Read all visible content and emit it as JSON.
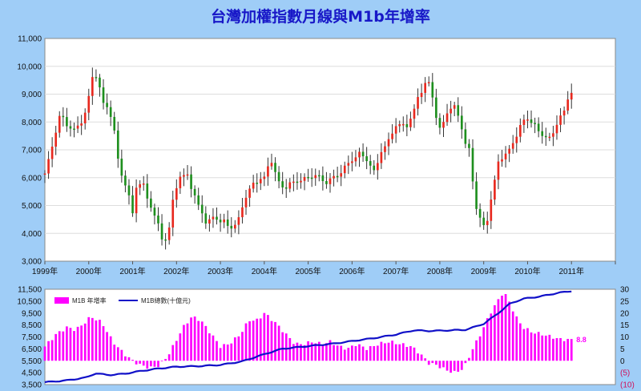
{
  "chart_data": [
    {
      "type": "candlestick",
      "title": "台灣加權指數月線與M1b年增率",
      "ylim": [
        3000,
        11000
      ],
      "y_ticks": [
        "3,000",
        "4,000",
        "5,000",
        "6,000",
        "7,000",
        "8,000",
        "9,000",
        "10,000",
        "11,000"
      ],
      "x_ticks": [
        "1999年",
        "2000年",
        "2001年",
        "2002年",
        "2003年",
        "2004年",
        "2005年",
        "2006年",
        "2007年",
        "2008年",
        "2009年",
        "2010年",
        "2011年"
      ],
      "x_range": [
        1999.0,
        2012.0
      ],
      "grid": true,
      "colors": {
        "up": "#e8281e",
        "down": "#1e8f1e"
      },
      "monthly_close_anchors": [
        [
          1999.0,
          6150
        ],
        [
          1999.1,
          6700
        ],
        [
          1999.2,
          7350
        ],
        [
          1999.35,
          8300
        ],
        [
          1999.5,
          7900
        ],
        [
          1999.65,
          7700
        ],
        [
          1999.8,
          7900
        ],
        [
          1999.95,
          8450
        ],
        [
          2000.08,
          9600
        ],
        [
          2000.2,
          9700
        ],
        [
          2000.3,
          8700
        ],
        [
          2000.45,
          8500
        ],
        [
          2000.55,
          8000
        ],
        [
          2000.7,
          6300
        ],
        [
          2000.85,
          5700
        ],
        [
          2001.0,
          4750
        ],
        [
          2001.1,
          5850
        ],
        [
          2001.25,
          5700
        ],
        [
          2001.4,
          5000
        ],
        [
          2001.55,
          4450
        ],
        [
          2001.7,
          3700
        ],
        [
          2001.8,
          3800
        ],
        [
          2001.95,
          5550
        ],
        [
          2002.1,
          6050
        ],
        [
          2002.25,
          6100
        ],
        [
          2002.4,
          5350
        ],
        [
          2002.55,
          4850
        ],
        [
          2002.7,
          4300
        ],
        [
          2002.85,
          4650
        ],
        [
          2002.95,
          4450
        ],
        [
          2003.1,
          4400
        ],
        [
          2003.25,
          4200
        ],
        [
          2003.4,
          4400
        ],
        [
          2003.5,
          5000
        ],
        [
          2003.7,
          5700
        ],
        [
          2003.85,
          5900
        ],
        [
          2004.0,
          6000
        ],
        [
          2004.15,
          6700
        ],
        [
          2004.3,
          5900
        ],
        [
          2004.45,
          5600
        ],
        [
          2004.6,
          5800
        ],
        [
          2004.8,
          5900
        ],
        [
          2005.0,
          6000
        ],
        [
          2005.2,
          6100
        ],
        [
          2005.4,
          5800
        ],
        [
          2005.55,
          6000
        ],
        [
          2005.7,
          6100
        ],
        [
          2005.9,
          6500
        ],
        [
          2006.05,
          6700
        ],
        [
          2006.2,
          6900
        ],
        [
          2006.35,
          6600
        ],
        [
          2006.5,
          6200
        ],
        [
          2006.65,
          6900
        ],
        [
          2006.8,
          7200
        ],
        [
          2006.95,
          7800
        ],
        [
          2007.1,
          7900
        ],
        [
          2007.25,
          7900
        ],
        [
          2007.35,
          8100
        ],
        [
          2007.5,
          8900
        ],
        [
          2007.65,
          9300
        ],
        [
          2007.8,
          9500
        ],
        [
          2007.85,
          8600
        ],
        [
          2008.0,
          7700
        ],
        [
          2008.15,
          8300
        ],
        [
          2008.3,
          8600
        ],
        [
          2008.45,
          8200
        ],
        [
          2008.55,
          7300
        ],
        [
          2008.7,
          6900
        ],
        [
          2008.8,
          5000
        ],
        [
          2008.9,
          4600
        ],
        [
          2009.0,
          4250
        ],
        [
          2009.1,
          4600
        ],
        [
          2009.25,
          5900
        ],
        [
          2009.35,
          6700
        ],
        [
          2009.5,
          6800
        ],
        [
          2009.65,
          7200
        ],
        [
          2009.8,
          7700
        ],
        [
          2009.95,
          8200
        ],
        [
          2010.08,
          8000
        ],
        [
          2010.2,
          7800
        ],
        [
          2010.35,
          7500
        ],
        [
          2010.5,
          7400
        ],
        [
          2010.6,
          7700
        ],
        [
          2010.75,
          8200
        ],
        [
          2010.85,
          8400
        ],
        [
          2010.92,
          8900
        ],
        [
          2011.0,
          9050
        ]
      ]
    },
    {
      "type": "bar+line",
      "legend": [
        "M1B 年增率",
        "M1B總數(十億元)"
      ],
      "legend_position": "top-left",
      "left_axis": {
        "ylim": [
          3500,
          11500
        ],
        "ticks": [
          "3,500",
          "4,500",
          "5,500",
          "6,500",
          "7,500",
          "8,500",
          "9,500",
          "10,500",
          "11,500"
        ]
      },
      "right_axis": {
        "ylim": [
          -10,
          30
        ],
        "ticks": [
          "(10)",
          "(5)",
          "0",
          "5",
          "10",
          "15",
          "20",
          "25",
          "30"
        ]
      },
      "x_range": [
        1999.0,
        2012.0
      ],
      "last_value_label": "8.8",
      "colors": {
        "bars": "#ff00ff",
        "line": "#1010c8",
        "label": "#ff00ff",
        "negative_ticks": "#d0105a"
      },
      "m1b_yoy_anchors": [
        [
          1999.0,
          6
        ],
        [
          1999.25,
          11
        ],
        [
          1999.5,
          14
        ],
        [
          1999.7,
          13
        ],
        [
          1999.85,
          15
        ],
        [
          2000.05,
          18.5
        ],
        [
          2000.3,
          16
        ],
        [
          2000.55,
          8
        ],
        [
          2000.8,
          3
        ],
        [
          2001.0,
          0
        ],
        [
          2001.2,
          -2
        ],
        [
          2001.4,
          -3
        ],
        [
          2001.6,
          -2
        ],
        [
          2001.8,
          2
        ],
        [
          2001.95,
          7
        ],
        [
          2002.15,
          14
        ],
        [
          2002.35,
          18.5
        ],
        [
          2002.55,
          17
        ],
        [
          2002.8,
          11
        ],
        [
          2003.0,
          6
        ],
        [
          2003.2,
          7
        ],
        [
          2003.45,
          11
        ],
        [
          2003.65,
          17
        ],
        [
          2003.85,
          17
        ],
        [
          2004.0,
          20
        ],
        [
          2004.25,
          16
        ],
        [
          2004.5,
          11
        ],
        [
          2004.7,
          7
        ],
        [
          2004.9,
          7
        ],
        [
          2005.1,
          8
        ],
        [
          2005.3,
          7
        ],
        [
          2005.5,
          8
        ],
        [
          2005.7,
          6
        ],
        [
          2005.9,
          5
        ],
        [
          2006.1,
          7
        ],
        [
          2006.35,
          5
        ],
        [
          2006.6,
          7
        ],
        [
          2006.85,
          8
        ],
        [
          2007.1,
          7
        ],
        [
          2007.35,
          6
        ],
        [
          2007.55,
          3
        ],
        [
          2007.75,
          -1
        ],
        [
          2007.95,
          -2
        ],
        [
          2008.15,
          -4
        ],
        [
          2008.35,
          -5
        ],
        [
          2008.55,
          -3
        ],
        [
          2008.75,
          5
        ],
        [
          2008.95,
          12
        ],
        [
          2009.15,
          20
        ],
        [
          2009.35,
          26
        ],
        [
          2009.45,
          29
        ],
        [
          2009.55,
          26
        ],
        [
          2009.75,
          18
        ],
        [
          2009.9,
          14
        ],
        [
          2010.1,
          12
        ],
        [
          2010.35,
          11
        ],
        [
          2010.55,
          10
        ],
        [
          2010.75,
          9
        ],
        [
          2011.0,
          8.8
        ]
      ],
      "m1b_total_anchors": [
        [
          1999.0,
          3700
        ],
        [
          1999.5,
          3850
        ],
        [
          1999.95,
          4100
        ],
        [
          2000.15,
          4450
        ],
        [
          2000.45,
          4300
        ],
        [
          2000.8,
          4400
        ],
        [
          2001.2,
          4650
        ],
        [
          2001.6,
          4850
        ],
        [
          2002.0,
          5000
        ],
        [
          2002.5,
          5050
        ],
        [
          2003.0,
          5150
        ],
        [
          2003.5,
          5450
        ],
        [
          2004.0,
          6050
        ],
        [
          2004.4,
          6500
        ],
        [
          2004.8,
          6650
        ],
        [
          2005.2,
          6800
        ],
        [
          2005.6,
          6950
        ],
        [
          2006.0,
          7150
        ],
        [
          2006.5,
          7400
        ],
        [
          2007.0,
          7700
        ],
        [
          2007.4,
          8050
        ],
        [
          2007.8,
          8000
        ],
        [
          2008.2,
          8050
        ],
        [
          2008.6,
          8100
        ],
        [
          2009.0,
          8600
        ],
        [
          2009.3,
          9400
        ],
        [
          2009.6,
          10300
        ],
        [
          2009.9,
          10700
        ],
        [
          2010.3,
          10900
        ],
        [
          2010.7,
          11200
        ],
        [
          2011.0,
          11350
        ]
      ]
    }
  ]
}
